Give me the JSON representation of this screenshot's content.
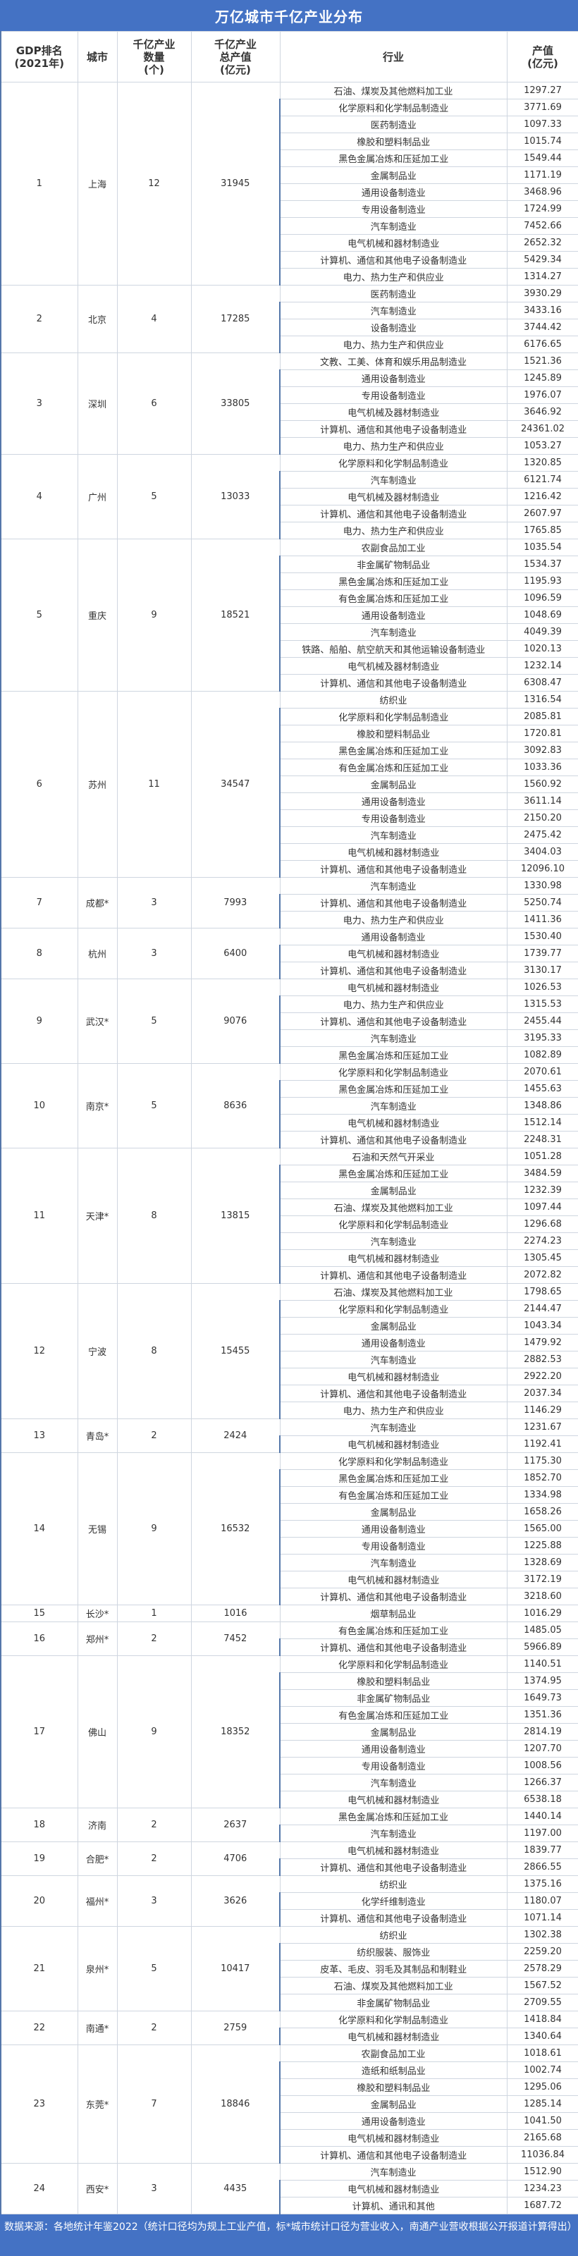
{
  "title": "万亿城市千亿产业分布",
  "headers": [
    "GDP排名\n(2021年)",
    "城市",
    "千亿产业\n数量\n(个)",
    "千亿产业\n总产值\n(亿元)",
    "行业",
    "产值\n(亿元)"
  ],
  "colors": {
    "banner": "#4472C4",
    "border": "#cfd6e0"
  },
  "cities": [
    {
      "rank": "1",
      "city": "上海",
      "count": "12",
      "total": "31945",
      "industries": [
        [
          "石油、煤炭及其他燃料加工业",
          "1297.27"
        ],
        [
          "化学原料和化学制品制造业",
          "3771.69"
        ],
        [
          "医药制造业",
          "1097.33"
        ],
        [
          "橡胶和塑料制品业",
          "1015.74"
        ],
        [
          "黑色金属冶炼和压延加工业",
          "1549.44"
        ],
        [
          "金属制品业",
          "1171.19"
        ],
        [
          "通用设备制造业",
          "3468.96"
        ],
        [
          "专用设备制造业",
          "1724.99"
        ],
        [
          "汽车制造业",
          "7452.66"
        ],
        [
          "电气机械和器材制造业",
          "2652.32"
        ],
        [
          "计算机、通信和其他电子设备制造业",
          "5429.34"
        ],
        [
          "电力、热力生产和供应业",
          "1314.27"
        ]
      ]
    },
    {
      "rank": "2",
      "city": "北京",
      "count": "4",
      "total": "17285",
      "industries": [
        [
          "医药制造业",
          "3930.29"
        ],
        [
          "汽车制造业",
          "3433.16"
        ],
        [
          "设备制造业",
          "3744.42"
        ],
        [
          "电力、热力生产和供应业",
          "6176.65"
        ]
      ]
    },
    {
      "rank": "3",
      "city": "深圳",
      "count": "6",
      "total": "33805",
      "industries": [
        [
          "文教、工美、体育和娱乐用品制造业",
          "1521.36"
        ],
        [
          "通用设备制造业",
          "1245.89"
        ],
        [
          "专用设备制造业",
          "1976.07"
        ],
        [
          "电气机械及器材制造业",
          "3646.92"
        ],
        [
          "计算机、通信和其他电子设备制造业",
          "24361.02"
        ],
        [
          "电力、热力生产和供应业",
          "1053.27"
        ]
      ]
    },
    {
      "rank": "4",
      "city": "广州",
      "count": "5",
      "total": "13033",
      "industries": [
        [
          "化学原料和化学制品制造业",
          "1320.85"
        ],
        [
          "汽车制造业",
          "6121.74"
        ],
        [
          "电气机械及器材制造业",
          "1216.42"
        ],
        [
          "计算机、通信和其他电子设备制造业",
          "2607.97"
        ],
        [
          "电力、热力生产和供应业",
          "1765.85"
        ]
      ]
    },
    {
      "rank": "5",
      "city": "重庆",
      "count": "9",
      "total": "18521",
      "industries": [
        [
          "农副食品加工业",
          "1035.54"
        ],
        [
          "非金属矿物制品业",
          "1534.37"
        ],
        [
          "黑色金属冶炼和压延加工业",
          "1195.93"
        ],
        [
          "有色金属冶炼和压延加工业",
          "1096.59"
        ],
        [
          "通用设备制造业",
          "1048.69"
        ],
        [
          "汽车制造业",
          "4049.39"
        ],
        [
          "铁路、船舶、航空航天和其他运输设备制造业",
          "1020.13"
        ],
        [
          "电气机械及器材制造业",
          "1232.14"
        ],
        [
          "计算机、通信和其他电子设备制造业",
          "6308.47"
        ]
      ]
    },
    {
      "rank": "6",
      "city": "苏州",
      "count": "11",
      "total": "34547",
      "industries": [
        [
          "纺织业",
          "1316.54"
        ],
        [
          "化学原料和化学制品制造业",
          "2085.81"
        ],
        [
          "橡胶和塑料制品业",
          "1720.81"
        ],
        [
          "黑色金属冶炼和压延加工业",
          "3092.83"
        ],
        [
          "有色金属冶炼和压延加工业",
          "1033.36"
        ],
        [
          "金属制品业",
          "1560.92"
        ],
        [
          "通用设备制造业",
          "3611.14"
        ],
        [
          "专用设备制造业",
          "2150.20"
        ],
        [
          "汽车制造业",
          "2475.42"
        ],
        [
          "电气机械和器材制造业",
          "3404.03"
        ],
        [
          "计算机、通信和其他电子设备制造业",
          "12096.10"
        ]
      ]
    },
    {
      "rank": "7",
      "city": "成都*",
      "count": "3",
      "total": "7993",
      "industries": [
        [
          "汽车制造业",
          "1330.98"
        ],
        [
          "计算机、通信和其他电子设备制造业",
          "5250.74"
        ],
        [
          "电力、热力生产和供应业",
          "1411.36"
        ]
      ]
    },
    {
      "rank": "8",
      "city": "杭州",
      "count": "3",
      "total": "6400",
      "industries": [
        [
          "通用设备制造业",
          "1530.40"
        ],
        [
          "电气机械和器材制造业",
          "1739.77"
        ],
        [
          "计算机、通信和其他电子设备制造业",
          "3130.17"
        ]
      ]
    },
    {
      "rank": "9",
      "city": "武汉*",
      "count": "5",
      "total": "9076",
      "industries": [
        [
          "电气机械和器材制造业",
          "1026.53"
        ],
        [
          "电力、热力生产和供应业",
          "1315.53"
        ],
        [
          "计算机、通信和其他电子设备制造业",
          "2455.44"
        ],
        [
          "汽车制造业",
          "3195.33"
        ],
        [
          "黑色金属冶炼和压延加工业",
          "1082.89"
        ]
      ]
    },
    {
      "rank": "10",
      "city": "南京*",
      "count": "5",
      "total": "8636",
      "industries": [
        [
          "化学原料和化学制品制造业",
          "2070.61"
        ],
        [
          "黑色金属冶炼和压延加工业",
          "1455.63"
        ],
        [
          "汽车制造业",
          "1348.86"
        ],
        [
          "电气机械和器材制造业",
          "1512.14"
        ],
        [
          "计算机、通信和其他电子设备制造业",
          "2248.31"
        ]
      ]
    },
    {
      "rank": "11",
      "city": "天津*",
      "count": "8",
      "total": "13815",
      "industries": [
        [
          "石油和天然气开采业",
          "1051.28"
        ],
        [
          "黑色金属冶炼和压延加工业",
          "3484.59"
        ],
        [
          "金属制品业",
          "1232.39"
        ],
        [
          "石油、煤炭及其他燃料加工业",
          "1097.44"
        ],
        [
          "化学原料和化学制品制造业",
          "1296.68"
        ],
        [
          "汽车制造业",
          "2274.23"
        ],
        [
          "电气机械和器材制造业",
          "1305.45"
        ],
        [
          "计算机、通信和其他电子设备制造业",
          "2072.82"
        ]
      ]
    },
    {
      "rank": "12",
      "city": "宁波",
      "count": "8",
      "total": "15455",
      "industries": [
        [
          "石油、煤炭及其他燃料加工业",
          "1798.65"
        ],
        [
          "化学原料和化学制品制造业",
          "2144.47"
        ],
        [
          "金属制品业",
          "1043.34"
        ],
        [
          "通用设备制造业",
          "1479.92"
        ],
        [
          "汽车制造业",
          "2882.53"
        ],
        [
          "电气机械和器材制造业",
          "2922.20"
        ],
        [
          "计算机、通信和其他电子设备制造业",
          "2037.34"
        ],
        [
          "电力、热力生产和供应业",
          "1146.29"
        ]
      ]
    },
    {
      "rank": "13",
      "city": "青岛*",
      "count": "2",
      "total": "2424",
      "industries": [
        [
          "汽车制造业",
          "1231.67"
        ],
        [
          "电气机械和器材制造业",
          "1192.41"
        ]
      ]
    },
    {
      "rank": "14",
      "city": "无锡",
      "count": "9",
      "total": "16532",
      "industries": [
        [
          "化学原料和化学制品制造业",
          "1175.30"
        ],
        [
          "黑色金属冶炼和压延加工业",
          "1852.70"
        ],
        [
          "有色金属冶炼和压延加工业",
          "1334.98"
        ],
        [
          "金属制品业",
          "1658.26"
        ],
        [
          "通用设备制造业",
          "1565.00"
        ],
        [
          "专用设备制造业",
          "1225.88"
        ],
        [
          "汽车制造业",
          "1328.69"
        ],
        [
          "电气机械和器材制造业",
          "3172.19"
        ],
        [
          "计算机、通信和其他电子设备制造业",
          "3218.60"
        ]
      ]
    },
    {
      "rank": "15",
      "city": "长沙*",
      "count": "1",
      "total": "1016",
      "industries": [
        [
          "烟草制品业",
          "1016.29"
        ]
      ]
    },
    {
      "rank": "16",
      "city": "郑州*",
      "count": "2",
      "total": "7452",
      "industries": [
        [
          "有色金属冶炼和压延加工业",
          "1485.05"
        ],
        [
          "计算机、通信和其他电子设备制造业",
          "5966.89"
        ]
      ]
    },
    {
      "rank": "17",
      "city": "佛山",
      "count": "9",
      "total": "18352",
      "industries": [
        [
          "化学原料和化学制品制造业",
          "1140.51"
        ],
        [
          "橡胶和塑料制品业",
          "1374.95"
        ],
        [
          "非金属矿物制品业",
          "1649.73"
        ],
        [
          "有色金属冶炼和压延加工业",
          "1351.36"
        ],
        [
          "金属制品业",
          "2814.19"
        ],
        [
          "通用设备制造业",
          "1207.70"
        ],
        [
          "专用设备制造业",
          "1008.56"
        ],
        [
          "汽车制造业",
          "1266.37"
        ],
        [
          "电气机械和器材制造业",
          "6538.18"
        ]
      ]
    },
    {
      "rank": "18",
      "city": "济南",
      "count": "2",
      "total": "2637",
      "industries": [
        [
          "黑色金属冶炼和压延加工业",
          "1440.14"
        ],
        [
          "汽车制造业",
          "1197.00"
        ]
      ]
    },
    {
      "rank": "19",
      "city": "合肥*",
      "count": "2",
      "total": "4706",
      "industries": [
        [
          "电气机械和器材制造业",
          "1839.77"
        ],
        [
          "计算机、通信和其他电子设备制造业",
          "2866.55"
        ]
      ]
    },
    {
      "rank": "20",
      "city": "福州*",
      "count": "3",
      "total": "3626",
      "industries": [
        [
          "纺织业",
          "1375.16"
        ],
        [
          "化学纤维制造业",
          "1180.07"
        ],
        [
          "计算机、通信和其他电子设备制造业",
          "1071.14"
        ]
      ]
    },
    {
      "rank": "21",
      "city": "泉州*",
      "count": "5",
      "total": "10417",
      "industries": [
        [
          "纺织业",
          "1302.38"
        ],
        [
          "纺织服装、服饰业",
          "2259.20"
        ],
        [
          "皮革、毛皮、羽毛及其制品和制鞋业",
          "2578.29"
        ],
        [
          "石油、煤炭及其他燃料加工业",
          "1567.52"
        ],
        [
          "非金属矿物制品业",
          "2709.55"
        ]
      ]
    },
    {
      "rank": "22",
      "city": "南通*",
      "count": "2",
      "total": "2759",
      "industries": [
        [
          "化学原料和化学制品制造业",
          "1418.84"
        ],
        [
          "电气机械和器材制造业",
          "1340.64"
        ]
      ]
    },
    {
      "rank": "23",
      "city": "东莞*",
      "count": "7",
      "total": "18846",
      "industries": [
        [
          "农副食品加工业",
          "1018.61"
        ],
        [
          "造纸和纸制品业",
          "1002.74"
        ],
        [
          "橡胶和塑料制品业",
          "1295.06"
        ],
        [
          "金属制品业",
          "1285.14"
        ],
        [
          "通用设备制造业",
          "1041.50"
        ],
        [
          "电气机械和器材制造业",
          "2165.68"
        ],
        [
          "计算机、通信和其他电子设备制造业",
          "11036.84"
        ]
      ]
    },
    {
      "rank": "24",
      "city": "西安*",
      "count": "3",
      "total": "4435",
      "industries": [
        [
          "汽车制造业",
          "1512.90"
        ],
        [
          "电气机械和器材制造业",
          "1234.23"
        ],
        [
          "计算机、通讯和其他",
          "1687.72"
        ]
      ]
    }
  ],
  "footer": "数据来源：各地统计年鉴2022（统计口径均为规上工业产值，标*城市统计口径为营业收入，南通产业营收根据公开报道计算得出）"
}
